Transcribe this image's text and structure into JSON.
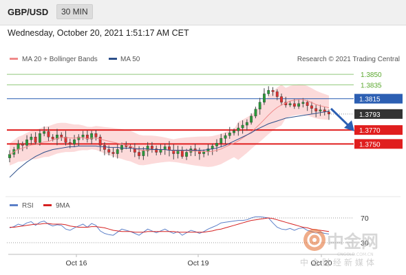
{
  "header": {
    "symbol": "GBP/USD",
    "timeframe": "30 MIN"
  },
  "datetime": "Wednesday, October 20, 2021 1:51:17 AM CET",
  "legend": {
    "ma_bb": "MA 20 + Bollinger Bands",
    "ma50": "MA 50",
    "credit": "Research © 2021 Trading Central",
    "rsi": "RSI",
    "ma9": "9MA"
  },
  "colors": {
    "bullish": "#2a9a3a",
    "bearish": "#e03030",
    "bands": "#fbd4d4",
    "ma20": "#f08a8a",
    "ma50": "#2c4f8a",
    "resistance_green": "#8fc87a",
    "pivot_blue": "#2c5fb3",
    "support_red": "#e01e1e",
    "price_tag": "#333333",
    "arrow": "#2c5fb3"
  },
  "chart_data": {
    "type": "candlestick",
    "instrument": "GBP/USD",
    "timeframe": "30 MIN",
    "ylim": [
      1.3698,
      1.3862
    ],
    "x_ticks": [
      "Oct 16",
      "Oct 19",
      "Oct 20"
    ],
    "levels": [
      {
        "value": 1.385,
        "label": "1.3850",
        "kind": "resistance"
      },
      {
        "value": 1.3835,
        "label": "1.3835",
        "kind": "resistance"
      },
      {
        "value": 1.3815,
        "label": "1.3815",
        "kind": "pivot"
      },
      {
        "value": 1.3793,
        "label": "1.3793",
        "kind": "last_price"
      },
      {
        "value": 1.377,
        "label": "1.3770",
        "kind": "support"
      },
      {
        "value": 1.375,
        "label": "1.3750",
        "kind": "support"
      }
    ],
    "close_path": [
      1.3735,
      1.3742,
      1.375,
      1.3748,
      1.3756,
      1.376,
      1.3752,
      1.3765,
      1.3768,
      1.376,
      1.3757,
      1.3763,
      1.376,
      1.3752,
      1.375,
      1.3756,
      1.376,
      1.3763,
      1.3757,
      1.3765,
      1.376,
      1.3748,
      1.3742,
      1.3738,
      1.3736,
      1.3742,
      1.3748,
      1.3746,
      1.3744,
      1.3738,
      1.3733,
      1.374,
      1.3747,
      1.3743,
      1.3738,
      1.3742,
      1.3746,
      1.3741,
      1.3736,
      1.374,
      1.3732,
      1.3738,
      1.3743,
      1.374,
      1.3736,
      1.3739,
      1.3743,
      1.3747,
      1.3751,
      1.3758,
      1.3762,
      1.3766,
      1.3769,
      1.3773,
      1.3777,
      1.3781,
      1.379,
      1.38,
      1.381,
      1.3822,
      1.3827,
      1.3825,
      1.3818,
      1.381,
      1.3806,
      1.3808,
      1.3804,
      1.3808,
      1.381,
      1.3805,
      1.3801,
      1.3797,
      1.3799,
      1.3796,
      1.3793
    ],
    "ma50": [
      1.3702,
      1.3708,
      1.3714,
      1.3719,
      1.3724,
      1.3728,
      1.3732,
      1.3735,
      1.3738,
      1.374,
      1.3742,
      1.3743,
      1.3744,
      1.3745,
      1.3746,
      1.3746,
      1.3747,
      1.3747,
      1.3747,
      1.3747,
      1.3747,
      1.3746,
      1.3746,
      1.3745,
      1.3745,
      1.3745,
      1.3744,
      1.3744,
      1.3744,
      1.3743,
      1.3743,
      1.3743,
      1.3743,
      1.3742,
      1.3742,
      1.3742,
      1.3742,
      1.3741,
      1.3741,
      1.3741,
      1.3741,
      1.3741,
      1.3741,
      1.3741,
      1.3741,
      1.3741,
      1.3742,
      1.3743,
      1.3744,
      1.3746,
      1.3748,
      1.3751,
      1.3754,
      1.3757,
      1.376,
      1.3763,
      1.3766,
      1.377,
      1.3773,
      1.3776,
      1.3779,
      1.3781,
      1.3783,
      1.3785,
      1.3787,
      1.3788,
      1.3789,
      1.379,
      1.3791,
      1.3792,
      1.3793,
      1.3794,
      1.3795,
      1.3796,
      1.3797
    ],
    "rsi_panel": {
      "ylim": [
        20,
        80
      ],
      "level_labels": [
        "70",
        "30"
      ],
      "rsi": [
        54,
        56,
        60,
        58,
        62,
        64,
        58,
        63,
        65,
        60,
        57,
        59,
        58,
        52,
        50,
        54,
        57,
        60,
        55,
        61,
        58,
        49,
        45,
        43,
        42,
        47,
        52,
        50,
        48,
        45,
        42,
        47,
        52,
        49,
        46,
        49,
        52,
        48,
        45,
        48,
        42,
        46,
        50,
        48,
        45,
        48,
        52,
        55,
        58,
        62,
        63,
        64,
        65,
        66,
        66,
        67,
        70,
        72,
        72,
        71,
        70,
        62,
        55,
        52,
        51,
        53,
        50,
        53,
        54,
        50,
        48,
        45,
        47,
        45,
        44
      ],
      "ma9": [
        55,
        55,
        56,
        57,
        58,
        59,
        60,
        60,
        61,
        61,
        60,
        60,
        60,
        59,
        57,
        56,
        55,
        55,
        55,
        56,
        56,
        55,
        54,
        52,
        50,
        49,
        48,
        48,
        48,
        47,
        47,
        47,
        48,
        48,
        48,
        48,
        48,
        48,
        48,
        47,
        47,
        47,
        47,
        47,
        47,
        47,
        48,
        49,
        51,
        52,
        54,
        56,
        58,
        60,
        62,
        64,
        66,
        67,
        68,
        69,
        70,
        69,
        67,
        65,
        63,
        61,
        59,
        57,
        55,
        54,
        52,
        51,
        50,
        49,
        48
      ]
    }
  }
}
